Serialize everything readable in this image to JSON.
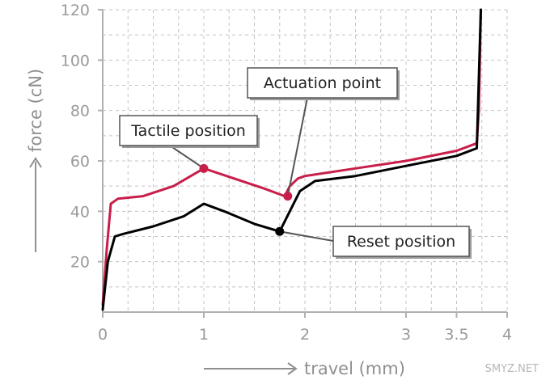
{
  "chart_data": {
    "type": "line",
    "xlabel": "travel (mm)",
    "ylabel": "force (cN)",
    "xlim": [
      0,
      4
    ],
    "ylim": [
      0,
      120
    ],
    "x_ticks": [
      {
        "value": 0,
        "label": "0"
      },
      {
        "value": 1,
        "label": "1"
      },
      {
        "value": 2,
        "label": "2"
      },
      {
        "value": 3,
        "label": "3"
      },
      {
        "value": 3.5,
        "label": "3.5"
      },
      {
        "value": 4,
        "label": "4"
      }
    ],
    "y_ticks": [
      {
        "value": 20,
        "label": "20"
      },
      {
        "value": 40,
        "label": "40"
      },
      {
        "value": 60,
        "label": "60"
      },
      {
        "value": 80,
        "label": "80"
      },
      {
        "value": 100,
        "label": "100"
      },
      {
        "value": 120,
        "label": "120"
      }
    ],
    "grid": "dashed",
    "series": [
      {
        "color": "#c81e4a",
        "points": [
          [
            0,
            3
          ],
          [
            0.04,
            25
          ],
          [
            0.08,
            43
          ],
          [
            0.15,
            45
          ],
          [
            0.4,
            46
          ],
          [
            0.7,
            50
          ],
          [
            1.0,
            57
          ],
          [
            1.3,
            53
          ],
          [
            1.6,
            49
          ],
          [
            1.8,
            46
          ],
          [
            1.85,
            50
          ],
          [
            1.93,
            53
          ],
          [
            2.0,
            54
          ],
          [
            2.5,
            57
          ],
          [
            3.0,
            60
          ],
          [
            3.5,
            64
          ],
          [
            3.7,
            67
          ],
          [
            3.72,
            80
          ],
          [
            3.74,
            120
          ]
        ]
      },
      {
        "color": "#000000",
        "points": [
          [
            0,
            1
          ],
          [
            0.05,
            20
          ],
          [
            0.12,
            30
          ],
          [
            0.2,
            31
          ],
          [
            0.5,
            34
          ],
          [
            0.8,
            38
          ],
          [
            1.0,
            43
          ],
          [
            1.2,
            40
          ],
          [
            1.5,
            35
          ],
          [
            1.75,
            32
          ],
          [
            1.85,
            40
          ],
          [
            1.95,
            48
          ],
          [
            2.1,
            52
          ],
          [
            2.5,
            54
          ],
          [
            3.0,
            58
          ],
          [
            3.5,
            62
          ],
          [
            3.7,
            65
          ],
          [
            3.74,
            120
          ]
        ]
      }
    ],
    "annotations": [
      {
        "label": "Tactile position",
        "x": 1.0,
        "y": 57,
        "marker_color": "#c81e4a"
      },
      {
        "label": "Actuation point",
        "x": 1.83,
        "y": 46,
        "marker_color": "#c81e4a"
      },
      {
        "label": "Reset position",
        "x": 1.75,
        "y": 32,
        "marker_color": "#000000"
      }
    ]
  },
  "watermark": "SMYZ.NET"
}
